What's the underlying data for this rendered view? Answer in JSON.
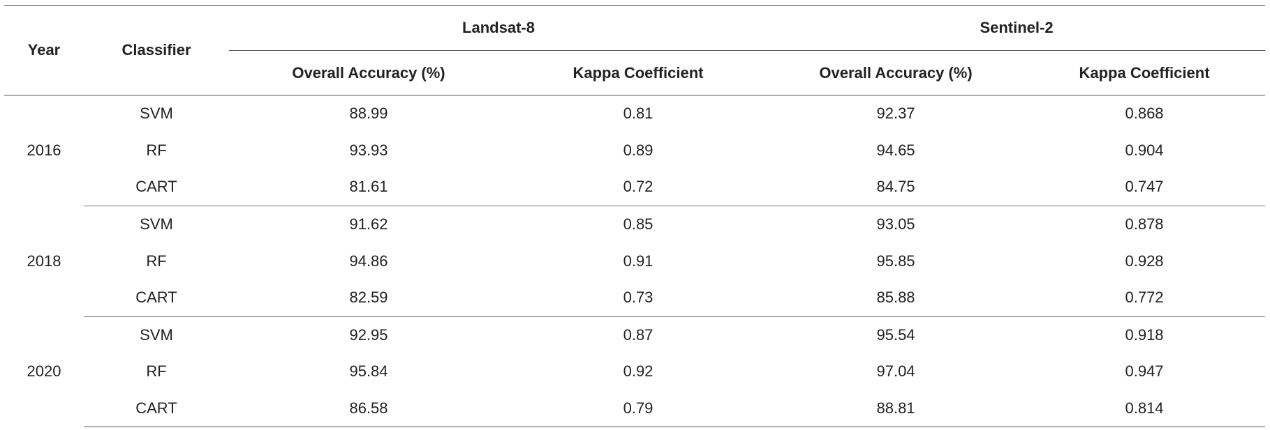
{
  "table": {
    "headers": {
      "year": "Year",
      "classifier": "Classifier",
      "landsat": "Landsat-8",
      "sentinel": "Sentinel-2",
      "overall_accuracy": "Overall Accuracy (%)",
      "kappa": "Kappa Coefficient"
    },
    "groups": [
      {
        "year": "2016",
        "rows": [
          {
            "classifier": "SVM",
            "l8_oa": "88.99",
            "l8_kappa": "0.81",
            "s2_oa": "92.37",
            "s2_kappa": "0.868"
          },
          {
            "classifier": "RF",
            "l8_oa": "93.93",
            "l8_kappa": "0.89",
            "s2_oa": "94.65",
            "s2_kappa": "0.904"
          },
          {
            "classifier": "CART",
            "l8_oa": "81.61",
            "l8_kappa": "0.72",
            "s2_oa": "84.75",
            "s2_kappa": "0.747"
          }
        ]
      },
      {
        "year": "2018",
        "rows": [
          {
            "classifier": "SVM",
            "l8_oa": "91.62",
            "l8_kappa": "0.85",
            "s2_oa": "93.05",
            "s2_kappa": "0.878"
          },
          {
            "classifier": "RF",
            "l8_oa": "94.86",
            "l8_kappa": "0.91",
            "s2_oa": "95.85",
            "s2_kappa": "0.928"
          },
          {
            "classifier": "CART",
            "l8_oa": "82.59",
            "l8_kappa": "0.73",
            "s2_oa": "85.88",
            "s2_kappa": "0.772"
          }
        ]
      },
      {
        "year": "2020",
        "rows": [
          {
            "classifier": "SVM",
            "l8_oa": "92.95",
            "l8_kappa": "0.87",
            "s2_oa": "95.54",
            "s2_kappa": "0.918"
          },
          {
            "classifier": "RF",
            "l8_oa": "95.84",
            "l8_kappa": "0.92",
            "s2_oa": "97.04",
            "s2_kappa": "0.947"
          },
          {
            "classifier": "CART",
            "l8_oa": "86.58",
            "l8_kappa": "0.79",
            "s2_oa": "88.81",
            "s2_kappa": "0.814"
          }
        ]
      }
    ]
  }
}
